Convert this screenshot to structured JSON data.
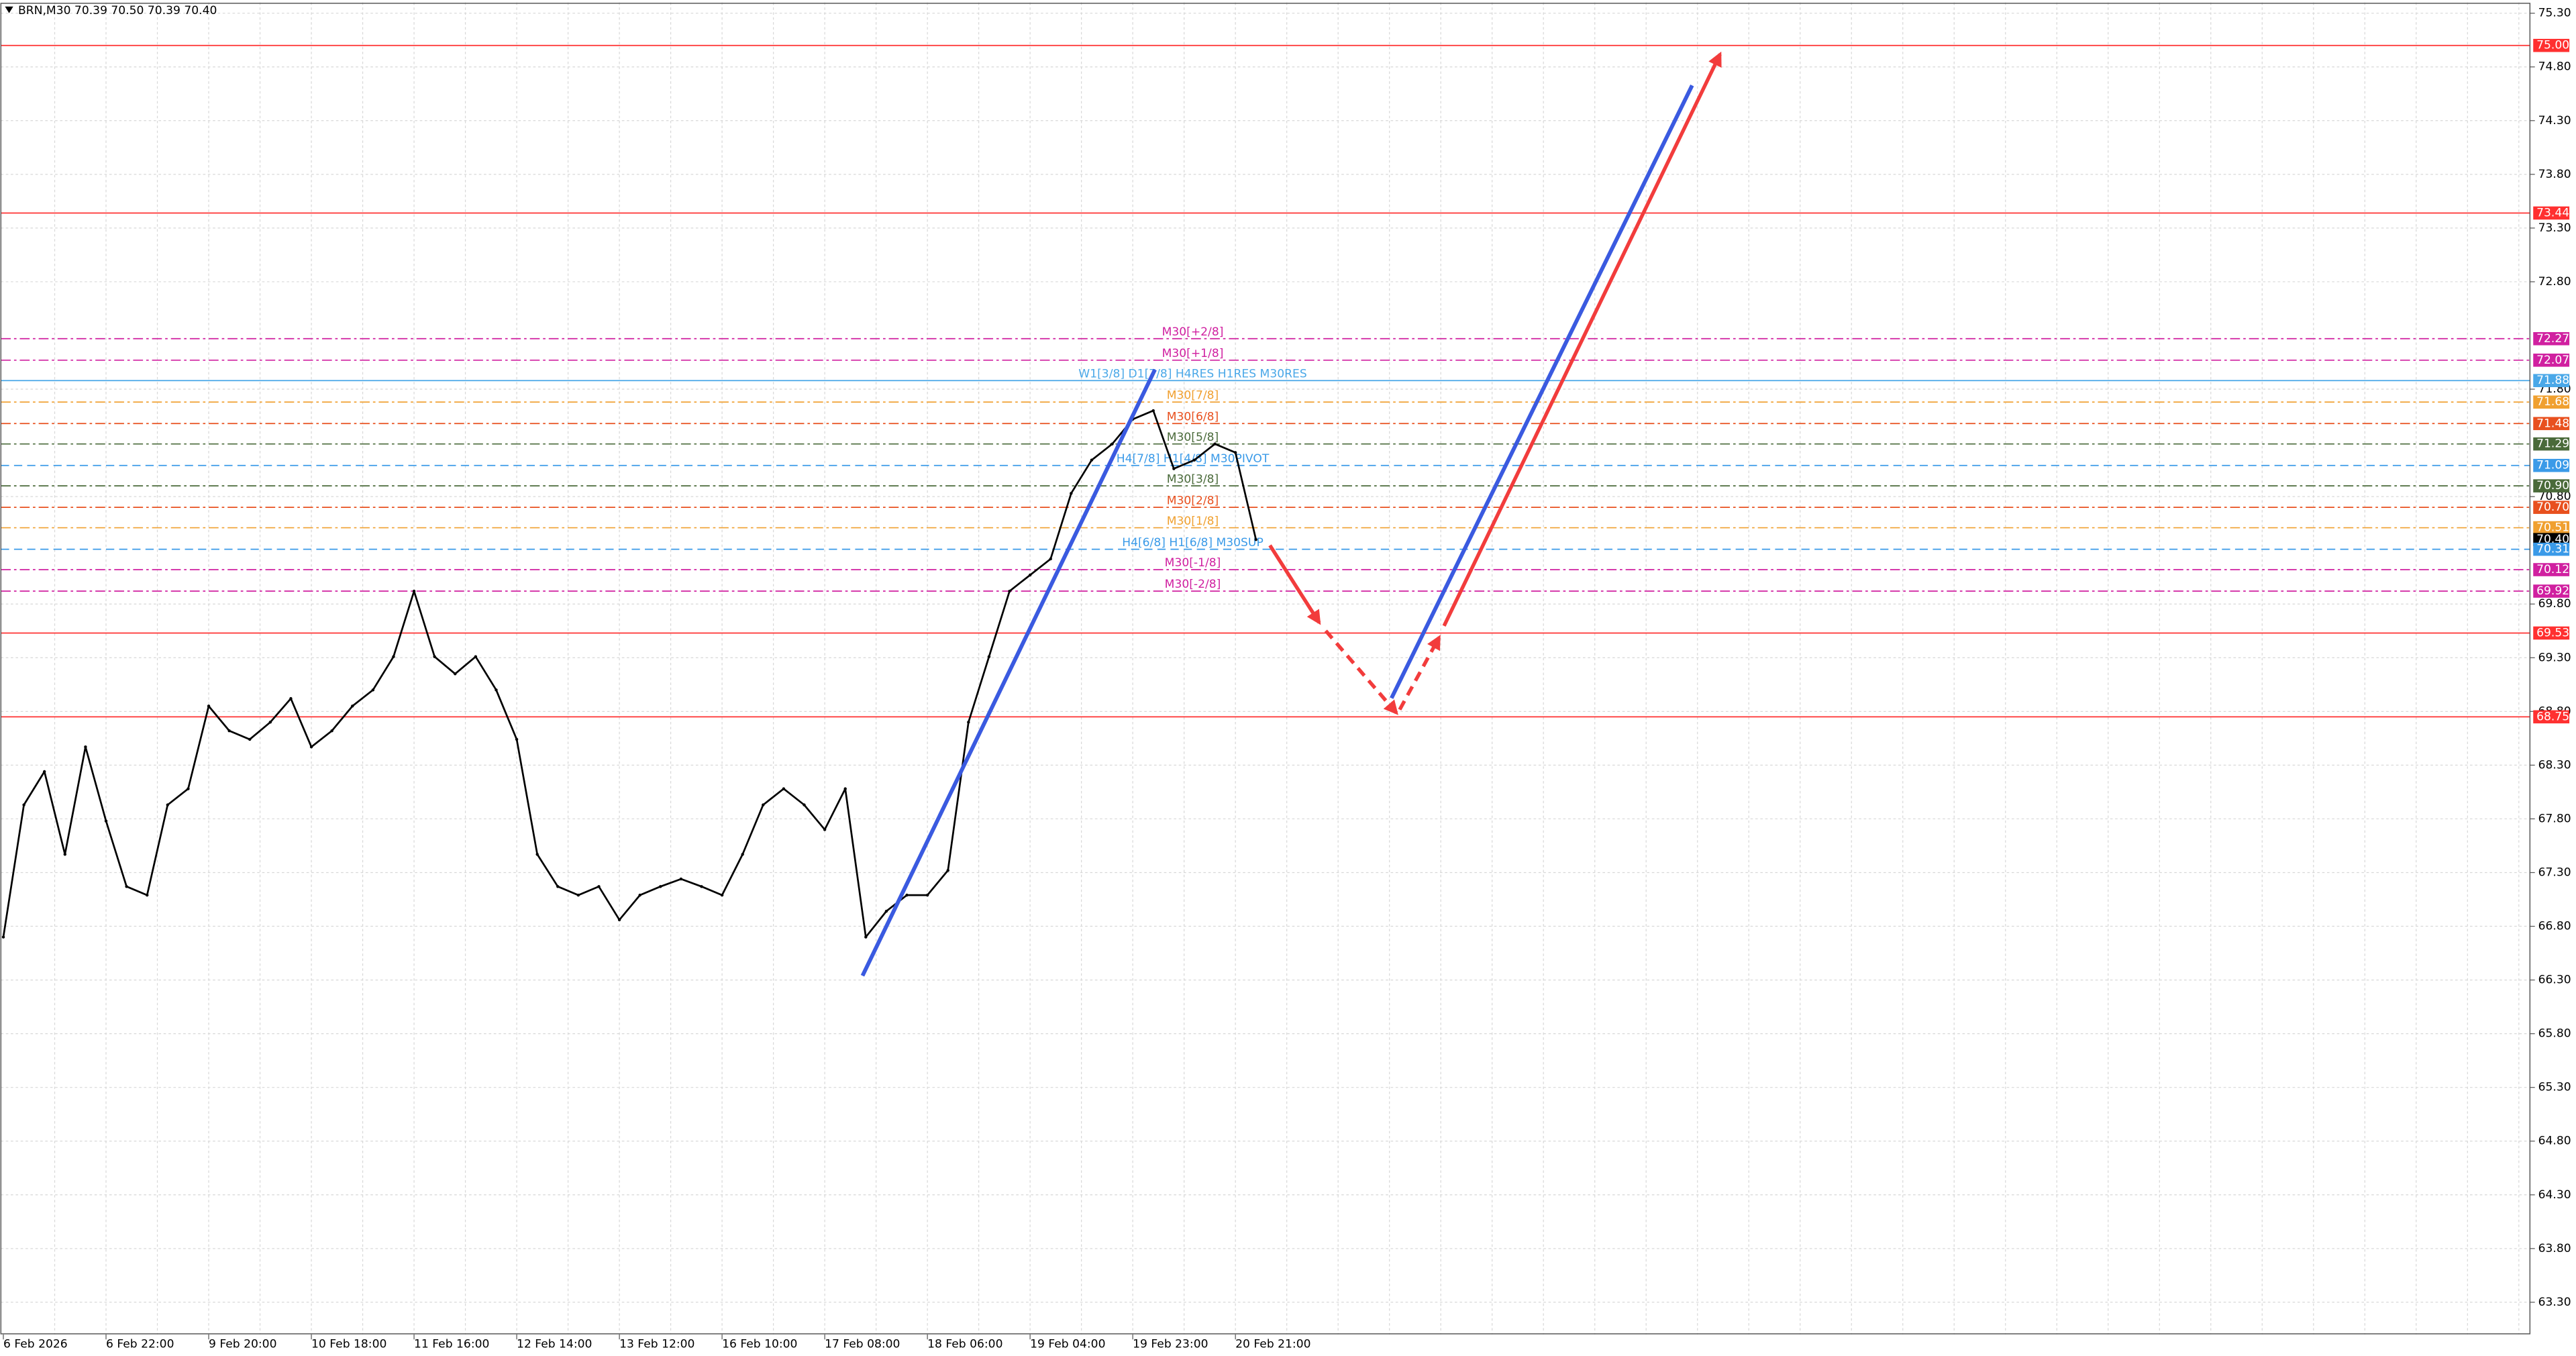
{
  "chart_data": {
    "type": "line",
    "title": "BRN,M30  70.39 70.50 70.39 70.40",
    "color": "#000000",
    "grid": true,
    "ylim": [
      63.0,
      75.4
    ],
    "yticks": [
      {
        "value": 63.3,
        "label": "63.30"
      },
      {
        "value": 63.8,
        "label": "63.80"
      },
      {
        "value": 64.3,
        "label": "64.30"
      },
      {
        "value": 64.8,
        "label": "64.80"
      },
      {
        "value": 65.3,
        "label": "65.30"
      },
      {
        "value": 65.8,
        "label": "65.80"
      },
      {
        "value": 66.3,
        "label": "66.30"
      },
      {
        "value": 66.8,
        "label": "66.80"
      },
      {
        "value": 67.3,
        "label": "67.30"
      },
      {
        "value": 67.8,
        "label": "67.80"
      },
      {
        "value": 68.3,
        "label": "68.30"
      },
      {
        "value": 68.8,
        "label": "68.80"
      },
      {
        "value": 69.3,
        "label": "69.30"
      },
      {
        "value": 69.8,
        "label": "69.80"
      },
      {
        "value": 70.8,
        "label": "70.80"
      },
      {
        "value": 71.8,
        "label": "71.80"
      },
      {
        "value": 72.8,
        "label": "72.80"
      },
      {
        "value": 73.3,
        "label": "73.30"
      },
      {
        "value": 73.8,
        "label": "73.80"
      },
      {
        "value": 74.3,
        "label": "74.30"
      },
      {
        "value": 74.8,
        "label": "74.80"
      },
      {
        "value": 75.3,
        "label": "75.30"
      }
    ],
    "categories": [
      "6 Feb 2026",
      null,
      null,
      null,
      null,
      "6 Feb 22:00",
      null,
      null,
      null,
      null,
      "9 Feb 20:00",
      null,
      null,
      null,
      null,
      "10 Feb 18:00",
      null,
      null,
      null,
      null,
      "11 Feb 16:00",
      null,
      null,
      null,
      null,
      "12 Feb 14:00",
      null,
      null,
      null,
      null,
      "13 Feb 12:00",
      null,
      null,
      null,
      null,
      "16 Feb 10:00",
      null,
      null,
      null,
      null,
      "17 Feb 08:00",
      null,
      null,
      null,
      null,
      "18 Feb 06:00",
      null,
      null,
      null,
      null,
      "19 Feb 04:00",
      null,
      null,
      null,
      null,
      "19 Feb 23:00",
      null,
      null,
      null,
      null,
      "20 Feb 21:00",
      null
    ],
    "values": [
      66.7,
      67.93,
      68.24,
      67.47,
      68.47,
      67.78,
      67.17,
      67.09,
      67.93,
      68.08,
      68.85,
      68.62,
      68.54,
      68.7,
      68.92,
      68.47,
      68.62,
      68.85,
      69.0,
      69.31,
      69.92,
      69.31,
      69.15,
      69.31,
      69.0,
      68.54,
      67.47,
      67.17,
      67.09,
      67.17,
      66.86,
      67.09,
      67.17,
      67.24,
      67.17,
      67.09,
      67.47,
      67.93,
      68.08,
      67.93,
      67.7,
      68.08,
      66.7,
      66.94,
      67.09,
      67.09,
      67.32,
      68.7,
      69.31,
      69.92,
      70.07,
      70.22,
      70.83,
      71.14,
      71.29,
      71.52,
      71.6,
      71.06,
      71.14,
      71.29,
      71.21,
      70.4
    ],
    "levels": [
      {
        "value": 75.0,
        "label": "75.00",
        "color": "#ff3030",
        "style": "solid"
      },
      {
        "value": 73.44,
        "label": "73.44",
        "color": "#ff3030",
        "style": "solid"
      },
      {
        "value": 72.27,
        "label": "72.27",
        "color": "#d020a0",
        "style": "dashdot",
        "text": "M30[+2/8]"
      },
      {
        "value": 72.07,
        "label": "72.07",
        "color": "#d020a0",
        "style": "dashdot",
        "text": "M30[+1/8]"
      },
      {
        "value": 71.88,
        "label": "71.88",
        "color": "#4aa8e8",
        "style": "solid",
        "text": "W1[3/8] D1[7/8] H4RES H1RES M30RES"
      },
      {
        "value": 71.68,
        "label": "71.68",
        "color": "#f0a030",
        "style": "dashdot",
        "text": "M30[7/8]"
      },
      {
        "value": 71.48,
        "label": "71.48",
        "color": "#e8501e",
        "style": "dashdot",
        "text": "M30[6/8]"
      },
      {
        "value": 71.29,
        "label": "71.29",
        "color": "#4a6a3a",
        "style": "dashdot",
        "text": "M30[5/8]"
      },
      {
        "value": 71.09,
        "label": "71.09",
        "color": "#3a9ae8",
        "style": "dashed",
        "text": "H4[7/8] H1[4/8] M30PIVOT"
      },
      {
        "value": 70.9,
        "label": "70.90",
        "color": "#4a6a3a",
        "style": "dashdot",
        "text": "M30[3/8]"
      },
      {
        "value": 70.7,
        "label": "70.70",
        "color": "#e8501e",
        "style": "dashdot",
        "text": "M30[2/8]"
      },
      {
        "value": 70.51,
        "label": "70.51",
        "color": "#f0a030",
        "style": "dashdot",
        "text": "M30[1/8]"
      },
      {
        "value": 70.4,
        "label": "70.40",
        "color": "#000000",
        "style": "none"
      },
      {
        "value": 70.31,
        "label": "70.31",
        "color": "#3a9ae8",
        "style": "dashed",
        "text": "H4[6/8] H1[6/8] M30SUP"
      },
      {
        "value": 70.12,
        "label": "70.12",
        "color": "#d020a0",
        "style": "dashdot",
        "text": "M30[-1/8]"
      },
      {
        "value": 69.92,
        "label": "69.92",
        "color": "#d020a0",
        "style": "dashdot",
        "text": "M30[-2/8]"
      },
      {
        "value": 69.53,
        "label": "69.53",
        "color": "#ff3030",
        "style": "solid"
      },
      {
        "value": 68.75,
        "label": "68.75",
        "color": "#ff3030",
        "style": "solid"
      }
    ]
  }
}
